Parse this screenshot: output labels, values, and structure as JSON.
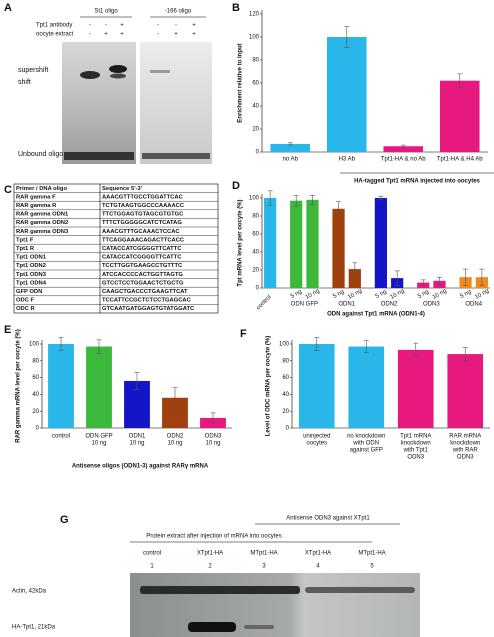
{
  "panel_a": {
    "letter": "A",
    "oligos": [
      "St1 oligo",
      "-166 oligo"
    ],
    "rows": [
      {
        "label": "Tpt1 antibody",
        "signs": [
          [
            "-",
            "-",
            "+"
          ],
          [
            "-",
            "-",
            "+"
          ]
        ]
      },
      {
        "label": "oocyte extract",
        "signs": [
          [
            "-",
            "+",
            "+"
          ],
          [
            "-",
            "+",
            "+"
          ]
        ]
      }
    ],
    "bands": [
      "supershift",
      "shift",
      "Unbound oligo"
    ]
  },
  "chart_data": [
    {
      "panel": "B",
      "type": "bar",
      "ylabel": "Enrichment relative to input",
      "categories": [
        "no Ab",
        "H3 Ab",
        "Tpt1-HA & no Ab",
        "Tpt1-HA & H4 Ab"
      ],
      "values": [
        7,
        100,
        5,
        62
      ],
      "errors": [
        1,
        9,
        1,
        6
      ],
      "colors": [
        "#29b6e8",
        "#29b6e8",
        "#e6197f",
        "#e6197f"
      ],
      "ylim": [
        0,
        120
      ],
      "yticks": [
        0,
        20,
        40,
        60,
        80,
        100,
        120
      ],
      "xlabel": "HA-tagged Tpt1 mRNA injected into oocytes"
    },
    {
      "panel": "D",
      "type": "bar",
      "ylabel": "Tpt mRNA level per oocyte (%)",
      "groups": [
        {
          "name": "control",
          "color": "#29b6e8",
          "bars": [
            {
              "value": 100,
              "error": 8
            }
          ]
        },
        {
          "name": "ODN GFP",
          "color": "#3cb83c",
          "bars": [
            {
              "label": "5 ng",
              "value": 97,
              "error": 6
            },
            {
              "label": "10 ng",
              "value": 98,
              "error": 5
            }
          ]
        },
        {
          "name": "ODN1",
          "color": "#a0400f",
          "bars": [
            {
              "label": "5 ng",
              "value": 88,
              "error": 8
            },
            {
              "label": "10 ng",
              "value": 21,
              "error": 7
            }
          ]
        },
        {
          "name": "ODN2",
          "color": "#1515c8",
          "bars": [
            {
              "label": "5 ng",
              "value": 100,
              "error": 2
            },
            {
              "label": "10 ng",
              "value": 11,
              "error": 8
            }
          ]
        },
        {
          "name": "ODN3",
          "color": "#e6197f",
          "bars": [
            {
              "label": "5 ng",
              "value": 6,
              "error": 3
            },
            {
              "label": "10 ng",
              "value": 8,
              "error": 4
            }
          ]
        },
        {
          "name": "ODN4",
          "color": "#f08a1c",
          "bars": [
            {
              "label": "5 ng",
              "value": 12,
              "error": 9
            },
            {
              "label": "10 ng",
              "value": 12,
              "error": 9
            }
          ]
        }
      ],
      "ylim": [
        0,
        100
      ],
      "yticks": [
        0,
        20,
        40,
        60,
        80,
        100
      ],
      "xlabel": "ODN against Tpt1 mRNA (ODN1-4)"
    },
    {
      "panel": "E",
      "type": "bar",
      "ylabel": "RAR gamma mRNA level per oocyte (%)",
      "categories": [
        [
          "control"
        ],
        [
          "ODN GFP",
          "10 ng"
        ],
        [
          "ODN1",
          "10 ng"
        ],
        [
          "ODN2",
          "10 ng"
        ],
        [
          "ODN3",
          "10 ng"
        ]
      ],
      "values": [
        100,
        97,
        56,
        36,
        12
      ],
      "errors": [
        8,
        8,
        10,
        12,
        6
      ],
      "colors": [
        "#29b6e8",
        "#3cb83c",
        "#1515c8",
        "#a0400f",
        "#e6197f"
      ],
      "ylim": [
        0,
        100
      ],
      "yticks": [
        0,
        20,
        40,
        60,
        80,
        100
      ],
      "xlabel": "Antisense oligos (ODN1-3) against RARγ mRNA"
    },
    {
      "panel": "F",
      "type": "bar",
      "ylabel": "Level of ODC mRNA per oocyte (%)",
      "categories": [
        [
          "uninjected",
          "oocytes"
        ],
        [
          "no knockdown",
          "with ODN",
          "against GFP"
        ],
        [
          "Tpt1 mRNA",
          "knockdown",
          "with Tpt1",
          "ODN3"
        ],
        [
          "RAR mRNA",
          "knockdown",
          "with RAR",
          "ODN3"
        ]
      ],
      "values": [
        100,
        97,
        93,
        88
      ],
      "errors": [
        8,
        7,
        8,
        8
      ],
      "colors": [
        "#29b6e8",
        "#29b6e8",
        "#e6197f",
        "#e6197f"
      ],
      "ylim": [
        0,
        100
      ],
      "yticks": [
        0,
        20,
        40,
        60,
        80,
        100
      ]
    }
  ],
  "panel_c": {
    "letter": "C",
    "header": [
      "Primer / DNA oligo",
      "Sequence 5'-3'"
    ],
    "rows": [
      [
        "RAR gamma F",
        "AAACGTTTGCCTGGATTCAC"
      ],
      [
        "RAR gamma R",
        "TCTGTAAGTGGCCCAAAACC"
      ],
      [
        "RAR gamma ODN1",
        "TTCTGGAGTGTAGCGTGTGC"
      ],
      [
        "RAR gamma ODN2",
        "TTTCTGGGGGCATCTCATAG"
      ],
      [
        "RAR gamma ODN3",
        "AAACGTTTGCAAACTCCAC"
      ],
      [
        "Tpt1 F",
        "TTCAGGAAACAGACTTCACC"
      ],
      [
        "Tpt1 R",
        "CATACCATCGGGGTTCATTC"
      ],
      [
        "Tpt1 ODN1",
        "CATACCATCGGGGTTCATTC"
      ],
      [
        "Tpt1 ODN2",
        "TCCTTGGTGAAGCCTGTTTC"
      ],
      [
        "Tpt1 ODN3",
        "ATCCACCCCACTGGTTAGTG"
      ],
      [
        "Tpt1 ODN4",
        "GTCCTCCTGGAACTCTGCTG"
      ],
      [
        "GFP ODN",
        "CAAGCTGACCCTGAAGTTCAT"
      ],
      [
        "ODC F",
        "TCCATTCCGCTCTCCTGAGCAC"
      ],
      [
        "ODC R",
        "GTCAATGATGGAGTGTATGGATC"
      ]
    ]
  },
  "panel_g": {
    "letter": "G",
    "header_top": "Antisense ODN3 against XTpt1",
    "header": "Protein extract after injection of mRNA into oocytes",
    "lanes": [
      "control",
      "XTpt1-HA",
      "MTpt1-HA",
      "XTpt1-HA",
      "MTpt1-HA"
    ],
    "lane_numbers": [
      1,
      2,
      3,
      4,
      5
    ],
    "bands": [
      "Actin, 42kDa",
      "HA-Tpt1, 21kDa"
    ]
  }
}
